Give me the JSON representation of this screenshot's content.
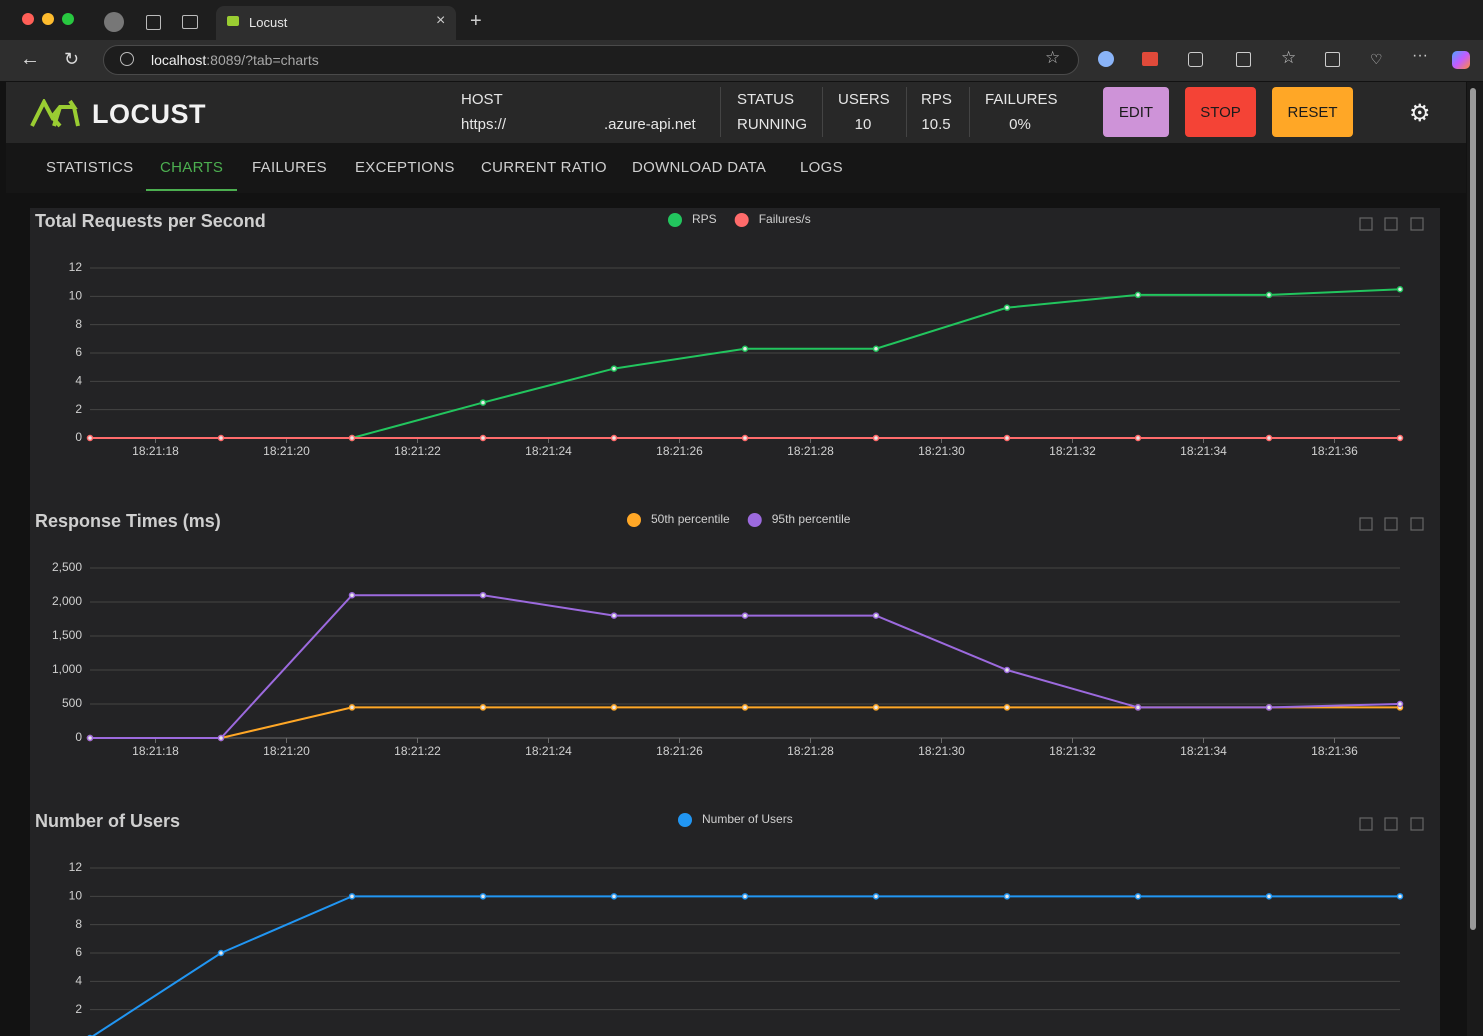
{
  "browser": {
    "tab_title": "Locust",
    "url_host": "localhost",
    "url_rest": ":8089/?tab=charts"
  },
  "header": {
    "logo": "LOCUST",
    "host_label": "HOST",
    "host_prefix": "https://",
    "host_suffix": ".azure-api.net",
    "status_label": "STATUS",
    "status": "RUNNING",
    "users_label": "USERS",
    "users": "10",
    "rps_label": "RPS",
    "rps": "10.5",
    "failures_label": "FAILURES",
    "failures": "0%",
    "buttons": [
      "EDIT",
      "STOP",
      "RESET"
    ]
  },
  "tabs": {
    "items": [
      "STATISTICS",
      "CHARTS",
      "FAILURES",
      "EXCEPTIONS",
      "CURRENT RATIO",
      "DOWNLOAD DATA",
      "LOGS"
    ],
    "active": 1
  },
  "chart_data": [
    {
      "type": "line",
      "title": "Total Requests per Second",
      "x": [
        "18:21:17",
        "18:21:19",
        "18:21:21",
        "18:21:23",
        "18:21:25",
        "18:21:27",
        "18:21:29",
        "18:21:31",
        "18:21:33",
        "18:21:35",
        "18:21:37"
      ],
      "series": [
        {
          "name": "RPS",
          "color": "#22c55e",
          "values": [
            null,
            null,
            0,
            2.5,
            4.9,
            6.3,
            6.3,
            9.2,
            10.1,
            10.1,
            10.5
          ]
        },
        {
          "name": "Failures/s",
          "color": "#ff6b6b",
          "values": [
            0,
            0,
            0,
            0,
            0,
            0,
            0,
            0,
            0,
            0,
            0
          ]
        }
      ],
      "xlim": [
        "18:21:17",
        "18:21:37"
      ],
      "xticks": [
        "18:21:18",
        "18:21:20",
        "18:21:22",
        "18:21:24",
        "18:21:26",
        "18:21:28",
        "18:21:30",
        "18:21:32",
        "18:21:34",
        "18:21:36"
      ],
      "ylim": [
        0,
        12
      ],
      "yticks": [
        0,
        2,
        4,
        6,
        8,
        10,
        12
      ],
      "grid": true
    },
    {
      "type": "line",
      "title": "Response Times (ms)",
      "x": [
        "18:21:17",
        "18:21:19",
        "18:21:21",
        "18:21:23",
        "18:21:25",
        "18:21:27",
        "18:21:29",
        "18:21:31",
        "18:21:33",
        "18:21:35",
        "18:21:37"
      ],
      "series": [
        {
          "name": "50th percentile",
          "color": "#ffa726",
          "values": [
            0,
            0,
            450,
            450,
            450,
            450,
            450,
            450,
            450,
            450,
            450
          ]
        },
        {
          "name": "95th percentile",
          "color": "#9c6ade",
          "values": [
            0,
            0,
            2100,
            2100,
            1800,
            1800,
            1800,
            1000,
            450,
            450,
            500
          ]
        }
      ],
      "xlim": [
        "18:21:17",
        "18:21:37"
      ],
      "xticks": [
        "18:21:18",
        "18:21:20",
        "18:21:22",
        "18:21:24",
        "18:21:26",
        "18:21:28",
        "18:21:30",
        "18:21:32",
        "18:21:34",
        "18:21:36"
      ],
      "ylim": [
        0,
        2500
      ],
      "yticks": [
        0,
        500,
        {
          "value": 1000,
          "label": "1,000"
        },
        {
          "value": 1500,
          "label": "1,500"
        },
        {
          "value": 2000,
          "label": "2,000"
        },
        {
          "value": 2500,
          "label": "2,500"
        }
      ],
      "grid": true
    },
    {
      "type": "line",
      "title": "Number of Users",
      "x": [
        "18:21:17",
        "18:21:19",
        "18:21:21",
        "18:21:23",
        "18:21:25",
        "18:21:27",
        "18:21:29",
        "18:21:31",
        "18:21:33",
        "18:21:35",
        "18:21:37"
      ],
      "series": [
        {
          "name": "Number of Users",
          "color": "#2196f3",
          "values": [
            0,
            6,
            10,
            10,
            10,
            10,
            10,
            10,
            10,
            10,
            10
          ]
        }
      ],
      "xlim": [
        "18:21:17",
        "18:21:37"
      ],
      "ylim": [
        0,
        12
      ],
      "yticks": [
        2,
        4,
        6,
        8,
        10,
        12
      ],
      "grid": true
    }
  ]
}
